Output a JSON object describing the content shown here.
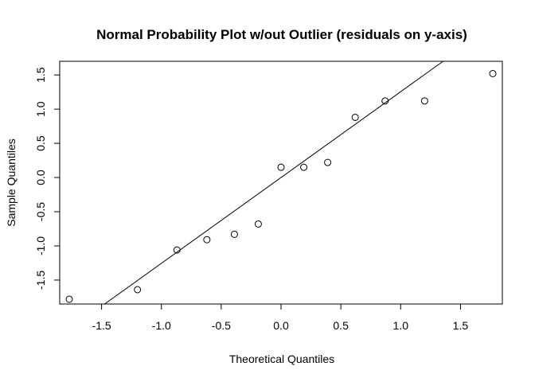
{
  "chart_data": {
    "type": "scatter",
    "title": "Normal Probability Plot w/out Outlier (residuals on y-axis)",
    "xlabel": "Theoretical Quantiles",
    "ylabel": "Sample Quantiles",
    "xlim": [
      -1.85,
      1.85
    ],
    "ylim": [
      -1.85,
      1.7
    ],
    "x_ticks": [
      -1.5,
      -1.0,
      -0.5,
      0.0,
      0.5,
      1.0,
      1.5
    ],
    "x_tick_labels": [
      "-1.5",
      "-1.0",
      "-0.5",
      "0.0",
      "0.5",
      "1.0",
      "1.5"
    ],
    "y_ticks": [
      -1.5,
      -1.0,
      -0.5,
      0.0,
      0.5,
      1.0,
      1.5
    ],
    "y_tick_labels": [
      "-1.5",
      "-1.0",
      "-0.5",
      "0.0",
      "0.5",
      "1.0",
      "1.5"
    ],
    "grid": false,
    "points": [
      {
        "x": -1.77,
        "y": -1.78
      },
      {
        "x": -1.2,
        "y": -1.64
      },
      {
        "x": -0.87,
        "y": -1.06
      },
      {
        "x": -0.62,
        "y": -0.91
      },
      {
        "x": -0.39,
        "y": -0.83
      },
      {
        "x": -0.19,
        "y": -0.68
      },
      {
        "x": 0.0,
        "y": 0.15
      },
      {
        "x": 0.19,
        "y": 0.15
      },
      {
        "x": 0.39,
        "y": 0.22
      },
      {
        "x": 0.62,
        "y": 0.88
      },
      {
        "x": 0.87,
        "y": 1.12
      },
      {
        "x": 1.2,
        "y": 1.12
      },
      {
        "x": 1.77,
        "y": 1.52
      }
    ],
    "reference_line": {
      "intercept": 0.0,
      "slope": 1.255
    }
  }
}
